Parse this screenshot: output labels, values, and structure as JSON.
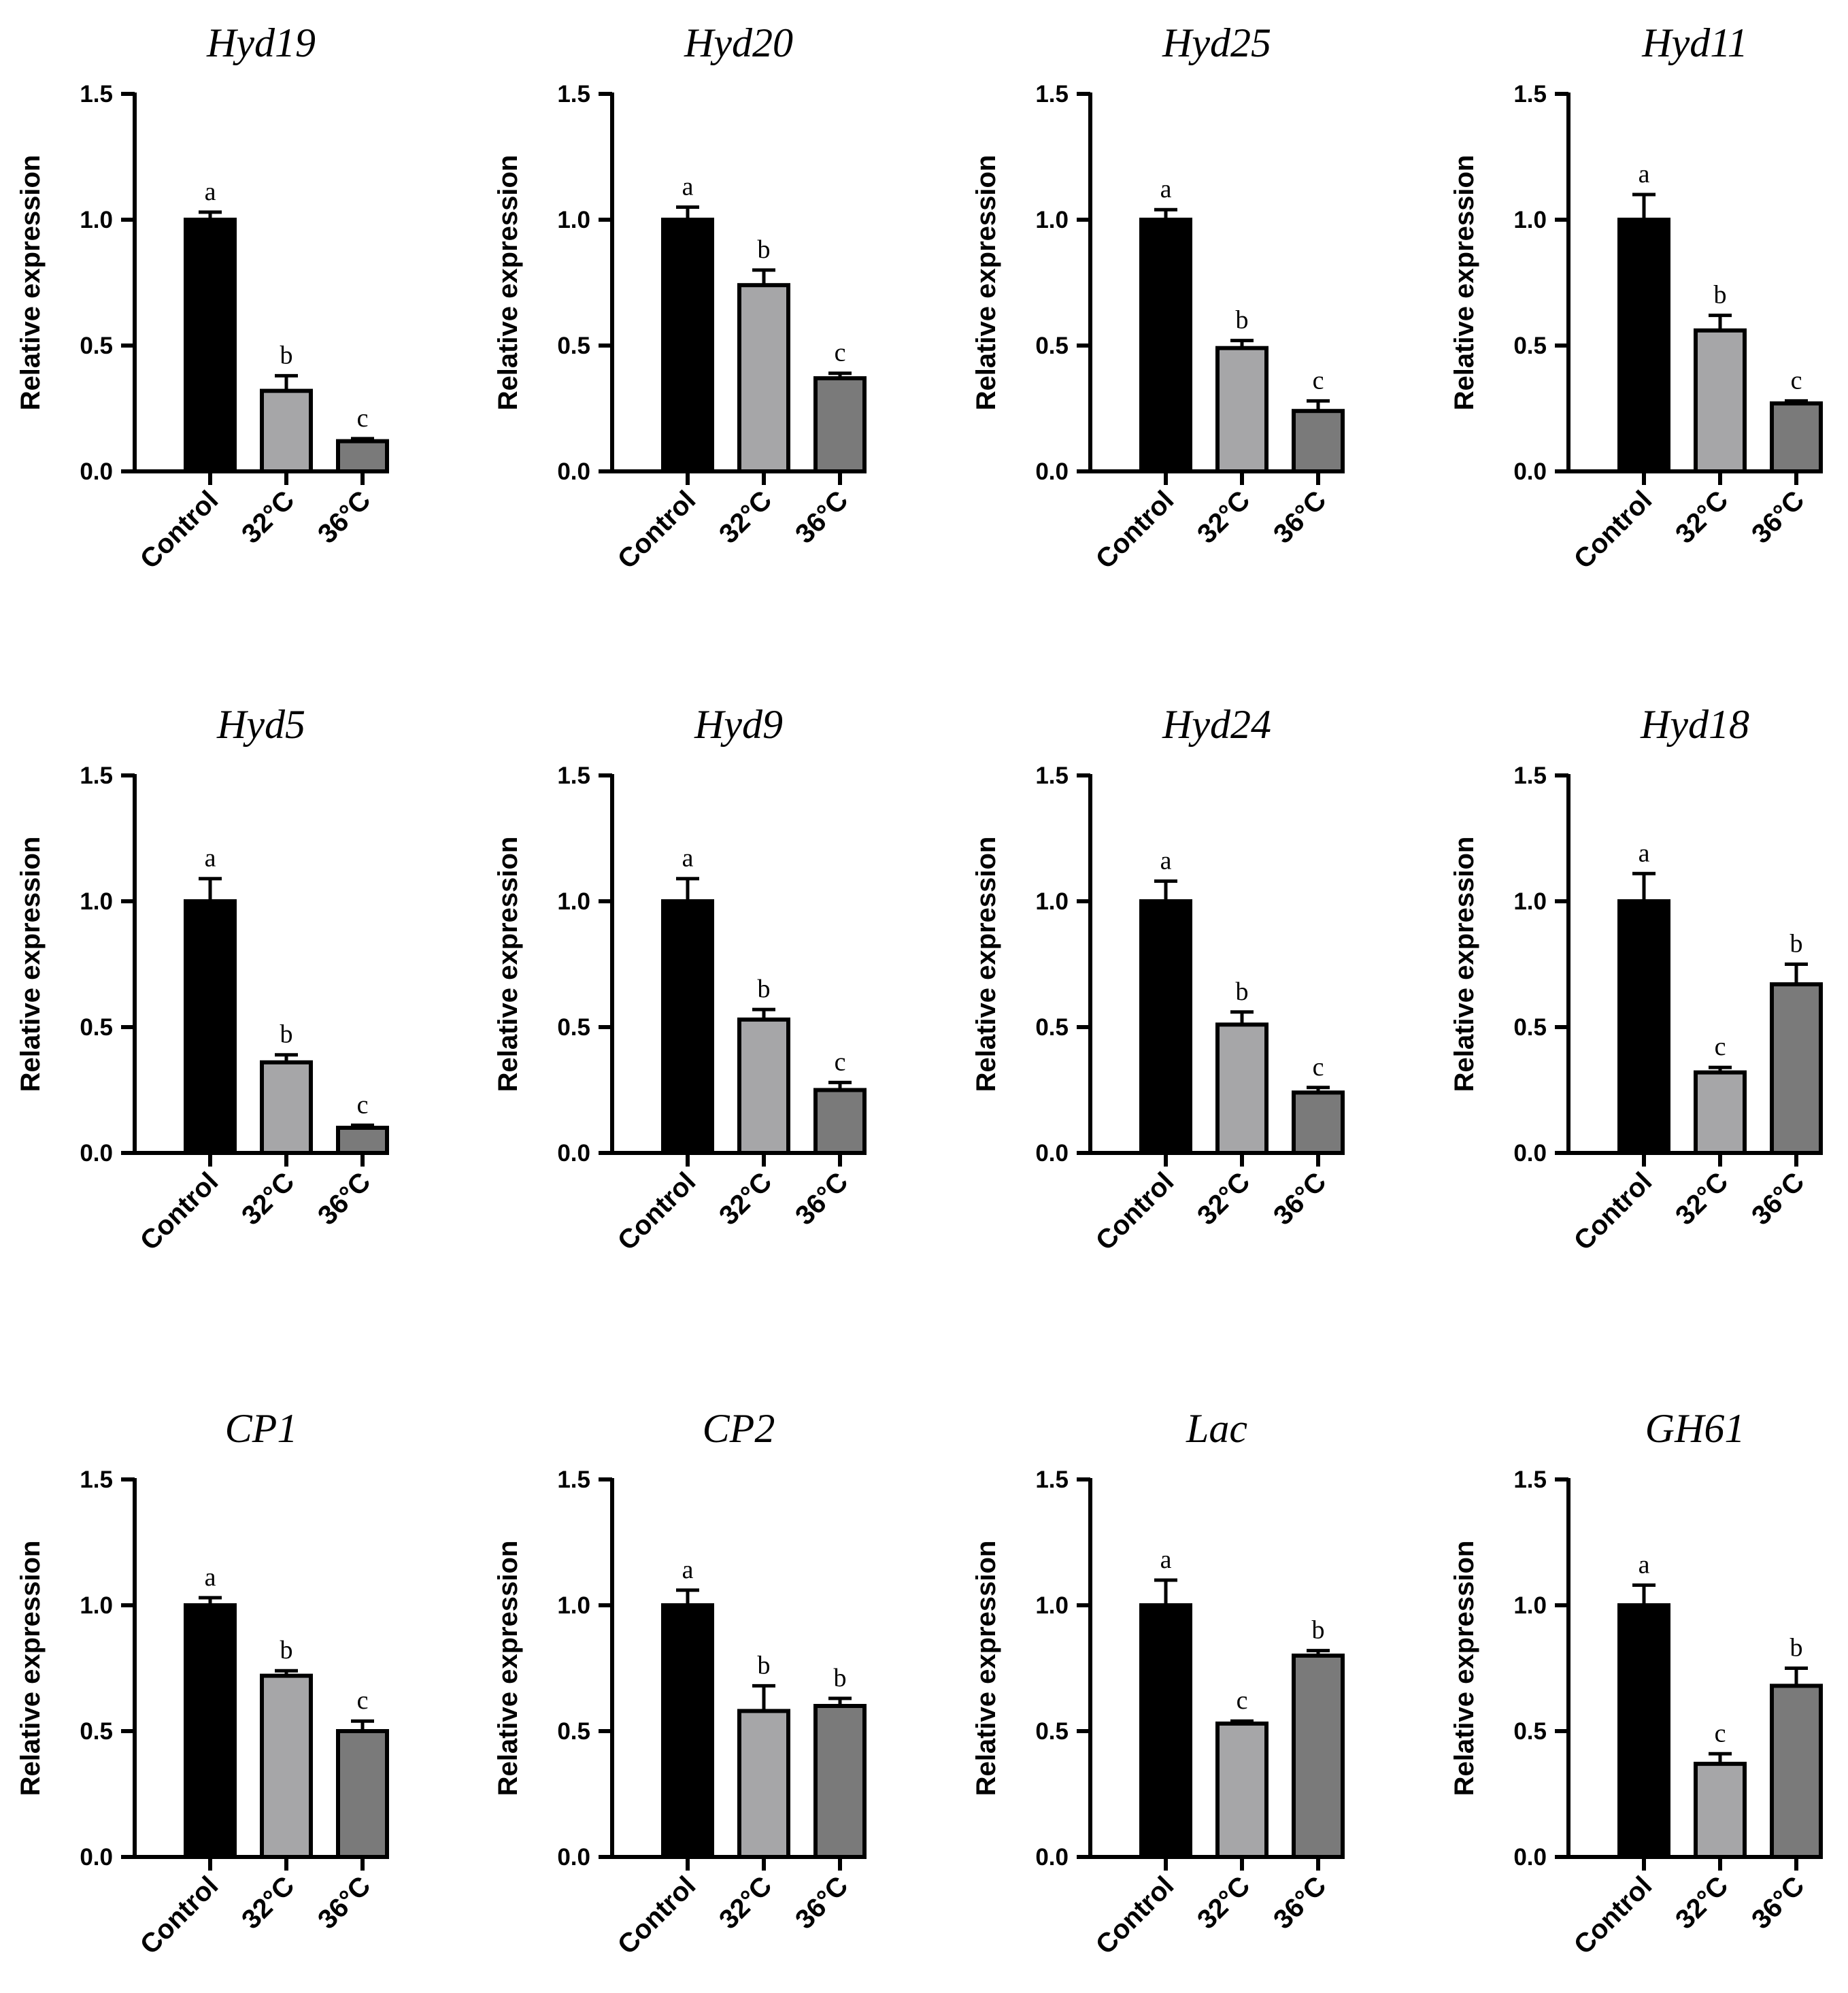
{
  "figure": {
    "ylabel": "Relative expression"
  },
  "chart_data": [
    {
      "type": "bar",
      "title": "Hyd19",
      "ylabel": "Relative expression",
      "categories": [
        "Control",
        "32°C",
        "36°C"
      ],
      "values": [
        1.0,
        0.32,
        0.12
      ],
      "errors": [
        0.03,
        0.06,
        0.01
      ],
      "letters": [
        "a",
        "b",
        "c"
      ],
      "ylim": [
        0,
        1.5
      ],
      "yticks": [
        "0.0",
        "0.5",
        "1.0",
        "1.5"
      ],
      "colors": [
        "#000000",
        "#a6a6a8",
        "#7a7a7a"
      ]
    },
    {
      "type": "bar",
      "title": "Hyd20",
      "ylabel": "Relative expression",
      "categories": [
        "Control",
        "32°C",
        "36°C"
      ],
      "values": [
        1.0,
        0.74,
        0.37
      ],
      "errors": [
        0.05,
        0.06,
        0.02
      ],
      "letters": [
        "a",
        "b",
        "c"
      ],
      "ylim": [
        0,
        1.5
      ],
      "yticks": [
        "0.0",
        "0.5",
        "1.0",
        "1.5"
      ],
      "colors": [
        "#000000",
        "#a6a6a8",
        "#7a7a7a"
      ]
    },
    {
      "type": "bar",
      "title": "Hyd25",
      "ylabel": "Relative expression",
      "categories": [
        "Control",
        "32°C",
        "36°C"
      ],
      "values": [
        1.0,
        0.49,
        0.24
      ],
      "errors": [
        0.04,
        0.03,
        0.04
      ],
      "letters": [
        "a",
        "b",
        "c"
      ],
      "ylim": [
        0,
        1.5
      ],
      "yticks": [
        "0.0",
        "0.5",
        "1.0",
        "1.5"
      ],
      "colors": [
        "#000000",
        "#a6a6a8",
        "#7a7a7a"
      ]
    },
    {
      "type": "bar",
      "title": "Hyd11",
      "ylabel": "Relative expression",
      "categories": [
        "Control",
        "32°C",
        "36°C"
      ],
      "values": [
        1.0,
        0.56,
        0.27
      ],
      "errors": [
        0.1,
        0.06,
        0.01
      ],
      "letters": [
        "a",
        "b",
        "c"
      ],
      "ylim": [
        0,
        1.5
      ],
      "yticks": [
        "0.0",
        "0.5",
        "1.0",
        "1.5"
      ],
      "colors": [
        "#000000",
        "#a6a6a8",
        "#7a7a7a"
      ]
    },
    {
      "type": "bar",
      "title": "Hyd5",
      "ylabel": "Relative expression",
      "categories": [
        "Control",
        "32°C",
        "36°C"
      ],
      "values": [
        1.0,
        0.36,
        0.1
      ],
      "errors": [
        0.09,
        0.03,
        0.01
      ],
      "letters": [
        "a",
        "b",
        "c"
      ],
      "ylim": [
        0,
        1.5
      ],
      "yticks": [
        "0.0",
        "0.5",
        "1.0",
        "1.5"
      ],
      "colors": [
        "#000000",
        "#a6a6a8",
        "#7a7a7a"
      ]
    },
    {
      "type": "bar",
      "title": "Hyd9",
      "ylabel": "Relative expression",
      "categories": [
        "Control",
        "32°C",
        "36°C"
      ],
      "values": [
        1.0,
        0.53,
        0.25
      ],
      "errors": [
        0.09,
        0.04,
        0.03
      ],
      "letters": [
        "a",
        "b",
        "c"
      ],
      "ylim": [
        0,
        1.5
      ],
      "yticks": [
        "0.0",
        "0.5",
        "1.0",
        "1.5"
      ],
      "colors": [
        "#000000",
        "#a6a6a8",
        "#7a7a7a"
      ]
    },
    {
      "type": "bar",
      "title": "Hyd24",
      "ylabel": "Relative expression",
      "categories": [
        "Control",
        "32°C",
        "36°C"
      ],
      "values": [
        1.0,
        0.51,
        0.24
      ],
      "errors": [
        0.08,
        0.05,
        0.02
      ],
      "letters": [
        "a",
        "b",
        "c"
      ],
      "ylim": [
        0,
        1.5
      ],
      "yticks": [
        "0.0",
        "0.5",
        "1.0",
        "1.5"
      ],
      "colors": [
        "#000000",
        "#a6a6a8",
        "#7a7a7a"
      ]
    },
    {
      "type": "bar",
      "title": "Hyd18",
      "ylabel": "Relative expression",
      "categories": [
        "Control",
        "32°C",
        "36°C"
      ],
      "values": [
        1.0,
        0.32,
        0.67
      ],
      "errors": [
        0.11,
        0.02,
        0.08
      ],
      "letters": [
        "a",
        "c",
        "b"
      ],
      "ylim": [
        0,
        1.5
      ],
      "yticks": [
        "0.0",
        "0.5",
        "1.0",
        "1.5"
      ],
      "colors": [
        "#000000",
        "#a6a6a8",
        "#7a7a7a"
      ]
    },
    {
      "type": "bar",
      "title": "CP1",
      "ylabel": "Relative expression",
      "categories": [
        "Control",
        "32°C",
        "36°C"
      ],
      "values": [
        1.0,
        0.72,
        0.5
      ],
      "errors": [
        0.03,
        0.02,
        0.04
      ],
      "letters": [
        "a",
        "b",
        "c"
      ],
      "ylim": [
        0,
        1.5
      ],
      "yticks": [
        "0.0",
        "0.5",
        "1.0",
        "1.5"
      ],
      "colors": [
        "#000000",
        "#a6a6a8",
        "#7a7a7a"
      ]
    },
    {
      "type": "bar",
      "title": "CP2",
      "ylabel": "Relative expression",
      "categories": [
        "Control",
        "32°C",
        "36°C"
      ],
      "values": [
        1.0,
        0.58,
        0.6
      ],
      "errors": [
        0.06,
        0.1,
        0.03
      ],
      "letters": [
        "a",
        "b",
        "b"
      ],
      "ylim": [
        0,
        1.5
      ],
      "yticks": [
        "0.0",
        "0.5",
        "1.0",
        "1.5"
      ],
      "colors": [
        "#000000",
        "#a6a6a8",
        "#7a7a7a"
      ]
    },
    {
      "type": "bar",
      "title": "Lac",
      "ylabel": "Relative expression",
      "categories": [
        "Control",
        "32°C",
        "36°C"
      ],
      "values": [
        1.0,
        0.53,
        0.8
      ],
      "errors": [
        0.1,
        0.01,
        0.02
      ],
      "letters": [
        "a",
        "c",
        "b"
      ],
      "ylim": [
        0,
        1.5
      ],
      "yticks": [
        "0.0",
        "0.5",
        "1.0",
        "1.5"
      ],
      "colors": [
        "#000000",
        "#a6a6a8",
        "#7a7a7a"
      ]
    },
    {
      "type": "bar",
      "title": "GH61",
      "ylabel": "Relative expression",
      "categories": [
        "Control",
        "32°C",
        "36°C"
      ],
      "values": [
        1.0,
        0.37,
        0.68
      ],
      "errors": [
        0.08,
        0.04,
        0.07
      ],
      "letters": [
        "a",
        "c",
        "b"
      ],
      "ylim": [
        0,
        1.5
      ],
      "yticks": [
        "0.0",
        "0.5",
        "1.0",
        "1.5"
      ],
      "colors": [
        "#000000",
        "#a6a6a8",
        "#7a7a7a"
      ]
    }
  ]
}
